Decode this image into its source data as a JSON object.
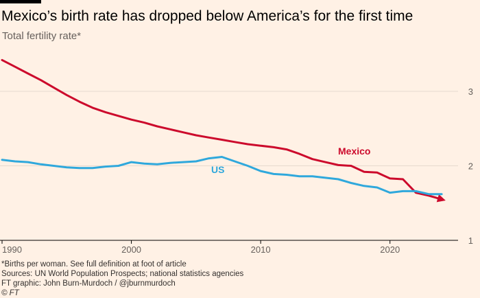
{
  "title": "Mexico’s birth rate has dropped below America’s for the first time",
  "subtitle": "Total fertility rate*",
  "footer": {
    "note": "*Births per woman. See full definition at foot of article",
    "sources": "Sources: UN World Population Prospects; national statistics agencies",
    "credit": "FT graphic: John Burn-Murdoch / @jburnmurdoch",
    "logo": "© FT"
  },
  "colors": {
    "mexico": "#cc0a2c",
    "us": "#2fa8dc",
    "background": "#fff1e5",
    "grid": "#e6d9ce",
    "axis": "#66605c"
  },
  "chart_data": {
    "type": "line",
    "title": "Mexico’s birth rate has dropped below America’s for the first time",
    "ylabel": "Total fertility rate*",
    "xlabel": "",
    "xlim": [
      1990,
      2025
    ],
    "ylim": [
      1,
      3.45
    ],
    "xticks": [
      1990,
      2000,
      2010,
      2020
    ],
    "xtick_labels": [
      "1990",
      "2000",
      "2010",
      "2020"
    ],
    "yticks": [
      1,
      2,
      3
    ],
    "ytick_labels": [
      "1",
      "2",
      "3"
    ],
    "grid": true,
    "series": [
      {
        "name": "Mexico",
        "label": "Mexico",
        "color": "#cc0a2c",
        "arrow_end": true,
        "x": [
          1990,
          1991,
          1992,
          1993,
          1994,
          1995,
          1996,
          1997,
          1998,
          1999,
          2000,
          2001,
          2002,
          2003,
          2004,
          2005,
          2006,
          2007,
          2008,
          2009,
          2010,
          2011,
          2012,
          2013,
          2014,
          2015,
          2016,
          2017,
          2018,
          2019,
          2020,
          2021,
          2022,
          2023,
          2024
        ],
        "y": [
          3.42,
          3.33,
          3.24,
          3.15,
          3.05,
          2.95,
          2.86,
          2.78,
          2.72,
          2.67,
          2.62,
          2.58,
          2.53,
          2.49,
          2.45,
          2.41,
          2.38,
          2.35,
          2.32,
          2.29,
          2.27,
          2.25,
          2.22,
          2.16,
          2.09,
          2.05,
          2.01,
          2.0,
          1.92,
          1.91,
          1.83,
          1.82,
          1.64,
          1.6,
          1.55
        ]
      },
      {
        "name": "US",
        "label": "US",
        "color": "#2fa8dc",
        "arrow_end": false,
        "x": [
          1990,
          1991,
          1992,
          1993,
          1994,
          1995,
          1996,
          1997,
          1998,
          1999,
          2000,
          2001,
          2002,
          2003,
          2004,
          2005,
          2006,
          2007,
          2008,
          2009,
          2010,
          2011,
          2012,
          2013,
          2014,
          2015,
          2016,
          2017,
          2018,
          2019,
          2020,
          2021,
          2022,
          2023,
          2024
        ],
        "y": [
          2.08,
          2.06,
          2.05,
          2.02,
          2.0,
          1.98,
          1.97,
          1.97,
          1.99,
          2.0,
          2.05,
          2.03,
          2.02,
          2.04,
          2.05,
          2.06,
          2.1,
          2.12,
          2.06,
          2.0,
          1.93,
          1.89,
          1.88,
          1.86,
          1.86,
          1.84,
          1.82,
          1.77,
          1.73,
          1.71,
          1.64,
          1.66,
          1.66,
          1.62,
          1.62
        ]
      }
    ]
  }
}
